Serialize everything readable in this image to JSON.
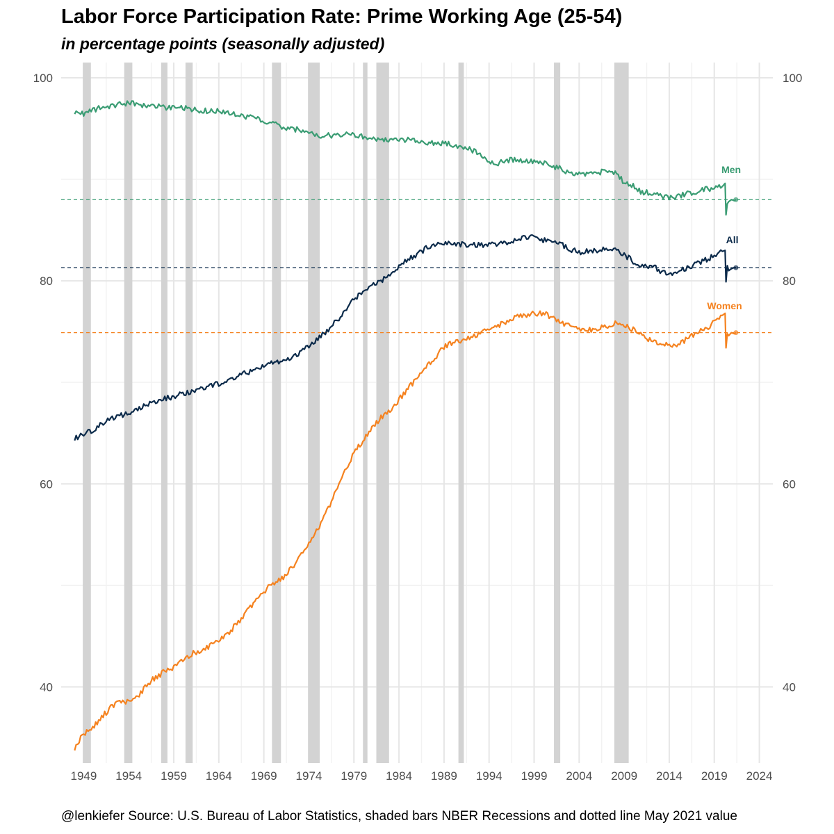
{
  "chart_data": {
    "type": "line",
    "title": "Labor Force Participation Rate: Prime Working Age (25-54)",
    "subtitle": "in percentage points (seasonally adjusted)",
    "caption": "@lenkiefer Source: U.S. Bureau of Labor Statistics, shaded bars NBER Recessions and dotted line May 2021 value",
    "xlabel": "",
    "ylabel": "",
    "xlim": [
      1946.5,
      2025.5
    ],
    "ylim": [
      32.5,
      101.5
    ],
    "grid": true,
    "legend": "none",
    "x_ticks": [
      1949,
      1954,
      1959,
      1964,
      1969,
      1974,
      1979,
      1984,
      1989,
      1994,
      1999,
      2004,
      2009,
      2014,
      2019,
      2024
    ],
    "y_ticks": [
      40,
      60,
      80,
      100
    ],
    "recessions": [
      [
        1948.9,
        1949.8
      ],
      [
        1953.5,
        1954.4
      ],
      [
        1957.6,
        1958.3
      ],
      [
        1960.3,
        1961.1
      ],
      [
        1969.9,
        1970.9
      ],
      [
        1973.9,
        1975.2
      ],
      [
        1980.0,
        1980.5
      ],
      [
        1981.5,
        1982.9
      ],
      [
        1990.6,
        1991.2
      ],
      [
        2001.2,
        2001.9
      ],
      [
        2007.9,
        2009.5
      ]
    ],
    "series": [
      {
        "name": "Men",
        "label": "Men",
        "color": "#3a9c73",
        "may2021": 88.0,
        "x": [
          1948.0,
          1949.0,
          1950.0,
          1951.0,
          1952.0,
          1953.0,
          1954.0,
          1955.0,
          1956.0,
          1957.0,
          1958.0,
          1959.0,
          1960.0,
          1961.0,
          1962.0,
          1963.0,
          1964.0,
          1965.0,
          1966.0,
          1967.0,
          1968.0,
          1969.0,
          1970.0,
          1971.0,
          1972.0,
          1973.0,
          1974.0,
          1975.0,
          1976.0,
          1977.0,
          1978.0,
          1979.0,
          1980.0,
          1981.0,
          1982.0,
          1983.0,
          1984.0,
          1985.0,
          1986.0,
          1987.0,
          1988.0,
          1989.0,
          1990.0,
          1991.0,
          1992.0,
          1993.0,
          1994.0,
          1995.0,
          1996.0,
          1997.0,
          1998.0,
          1999.0,
          2000.0,
          2001.0,
          2002.0,
          2003.0,
          2004.0,
          2005.0,
          2006.0,
          2007.0,
          2008.0,
          2009.0,
          2010.0,
          2011.0,
          2012.0,
          2013.0,
          2014.0,
          2015.0,
          2016.0,
          2017.0,
          2018.0,
          2019.0,
          2019.9,
          2020.2,
          2020.3,
          2020.45,
          2020.6,
          2020.9,
          2021.2,
          2021.4
        ],
        "y": [
          96.6,
          96.5,
          96.8,
          97.1,
          97.2,
          97.4,
          97.5,
          97.4,
          97.3,
          97.2,
          97.1,
          97.0,
          97.0,
          96.9,
          96.8,
          96.7,
          96.7,
          96.6,
          96.4,
          96.2,
          96.0,
          95.8,
          95.5,
          95.1,
          94.9,
          94.9,
          94.7,
          94.3,
          94.3,
          94.3,
          94.4,
          94.4,
          94.2,
          94.1,
          93.8,
          93.9,
          93.9,
          93.9,
          93.7,
          93.6,
          93.5,
          93.6,
          93.4,
          93.1,
          92.9,
          92.5,
          91.8,
          91.6,
          91.9,
          91.9,
          91.8,
          91.7,
          91.6,
          91.3,
          91.0,
          90.6,
          90.5,
          90.5,
          90.6,
          90.9,
          90.6,
          89.7,
          89.3,
          88.7,
          88.7,
          88.4,
          88.2,
          88.3,
          88.6,
          88.8,
          89.0,
          89.1,
          89.3,
          89.6,
          86.5,
          87.6,
          87.8,
          88.0,
          87.9,
          88.0
        ]
      },
      {
        "name": "All",
        "label": "All",
        "color": "#0b2a4a",
        "may2021": 81.3,
        "x": [
          1948.0,
          1949.0,
          1950.0,
          1951.0,
          1952.0,
          1953.0,
          1954.0,
          1955.0,
          1956.0,
          1957.0,
          1958.0,
          1959.0,
          1960.0,
          1961.0,
          1962.0,
          1963.0,
          1964.0,
          1965.0,
          1966.0,
          1967.0,
          1968.0,
          1969.0,
          1970.0,
          1971.0,
          1972.0,
          1973.0,
          1974.0,
          1975.0,
          1976.0,
          1977.0,
          1978.0,
          1979.0,
          1980.0,
          1981.0,
          1982.0,
          1983.0,
          1984.0,
          1985.0,
          1986.0,
          1987.0,
          1988.0,
          1989.0,
          1990.0,
          1991.0,
          1992.0,
          1993.0,
          1994.0,
          1995.0,
          1996.0,
          1997.0,
          1998.0,
          1999.0,
          2000.0,
          2001.0,
          2002.0,
          2003.0,
          2004.0,
          2005.0,
          2006.0,
          2007.0,
          2008.0,
          2009.0,
          2010.0,
          2011.0,
          2012.0,
          2013.0,
          2014.0,
          2015.0,
          2016.0,
          2017.0,
          2018.0,
          2019.0,
          2019.9,
          2020.2,
          2020.3,
          2020.45,
          2020.6,
          2020.9,
          2021.2,
          2021.4
        ],
        "y": [
          64.4,
          65.0,
          65.3,
          66.0,
          66.4,
          66.7,
          66.9,
          67.3,
          67.8,
          68.2,
          68.4,
          68.6,
          68.9,
          69.1,
          69.3,
          69.6,
          69.9,
          70.2,
          70.6,
          70.9,
          71.2,
          71.6,
          71.9,
          72.1,
          72.4,
          72.9,
          73.6,
          74.3,
          75.0,
          76.0,
          77.0,
          78.2,
          79.0,
          79.5,
          80.0,
          80.5,
          81.4,
          82.1,
          82.6,
          83.2,
          83.5,
          83.8,
          83.7,
          83.6,
          83.6,
          83.5,
          83.5,
          83.6,
          83.7,
          84.1,
          84.2,
          84.3,
          84.0,
          83.9,
          83.6,
          83.1,
          82.8,
          82.9,
          82.9,
          83.1,
          83.0,
          82.6,
          81.9,
          81.5,
          81.5,
          81.0,
          80.7,
          80.8,
          81.3,
          81.7,
          82.1,
          82.4,
          82.9,
          83.0,
          79.9,
          81.5,
          81.0,
          81.2,
          81.3,
          81.3
        ]
      },
      {
        "name": "Women",
        "label": "Women",
        "color": "#f5821f",
        "may2021": 74.9,
        "x": [
          1948.0,
          1949.0,
          1950.0,
          1951.0,
          1952.0,
          1953.0,
          1954.0,
          1955.0,
          1956.0,
          1957.0,
          1958.0,
          1959.0,
          1960.0,
          1961.0,
          1962.0,
          1963.0,
          1964.0,
          1965.0,
          1966.0,
          1967.0,
          1968.0,
          1969.0,
          1970.0,
          1971.0,
          1972.0,
          1973.0,
          1974.0,
          1975.0,
          1976.0,
          1977.0,
          1978.0,
          1979.0,
          1980.0,
          1981.0,
          1982.0,
          1983.0,
          1984.0,
          1985.0,
          1986.0,
          1987.0,
          1988.0,
          1989.0,
          1990.0,
          1991.0,
          1992.0,
          1993.0,
          1994.0,
          1995.0,
          1996.0,
          1997.0,
          1998.0,
          1999.0,
          2000.0,
          2001.0,
          2002.0,
          2003.0,
          2004.0,
          2005.0,
          2006.0,
          2007.0,
          2008.0,
          2009.0,
          2010.0,
          2011.0,
          2012.0,
          2013.0,
          2014.0,
          2015.0,
          2016.0,
          2017.0,
          2018.0,
          2019.0,
          2019.9,
          2020.2,
          2020.3,
          2020.45,
          2020.6,
          2020.9,
          2021.2,
          2021.4
        ],
        "y": [
          34.0,
          35.4,
          36.0,
          37.0,
          38.0,
          38.6,
          38.5,
          39.0,
          40.2,
          41.0,
          41.5,
          42.0,
          42.6,
          43.3,
          43.5,
          44.0,
          44.5,
          45.3,
          46.2,
          47.3,
          48.3,
          49.4,
          50.2,
          50.7,
          51.6,
          52.8,
          54.3,
          55.6,
          57.3,
          59.2,
          61.2,
          63.0,
          64.3,
          65.5,
          66.5,
          67.2,
          68.3,
          69.4,
          70.4,
          71.5,
          72.4,
          73.5,
          74.0,
          74.0,
          74.5,
          74.8,
          75.3,
          75.6,
          76.0,
          76.6,
          76.6,
          76.8,
          76.8,
          76.4,
          75.9,
          75.5,
          75.2,
          75.1,
          75.3,
          75.5,
          75.8,
          75.7,
          75.2,
          74.6,
          74.1,
          73.8,
          73.6,
          73.7,
          74.3,
          74.8,
          75.3,
          75.9,
          76.6,
          76.8,
          73.4,
          74.8,
          74.6,
          74.9,
          74.8,
          74.9
        ]
      }
    ]
  }
}
